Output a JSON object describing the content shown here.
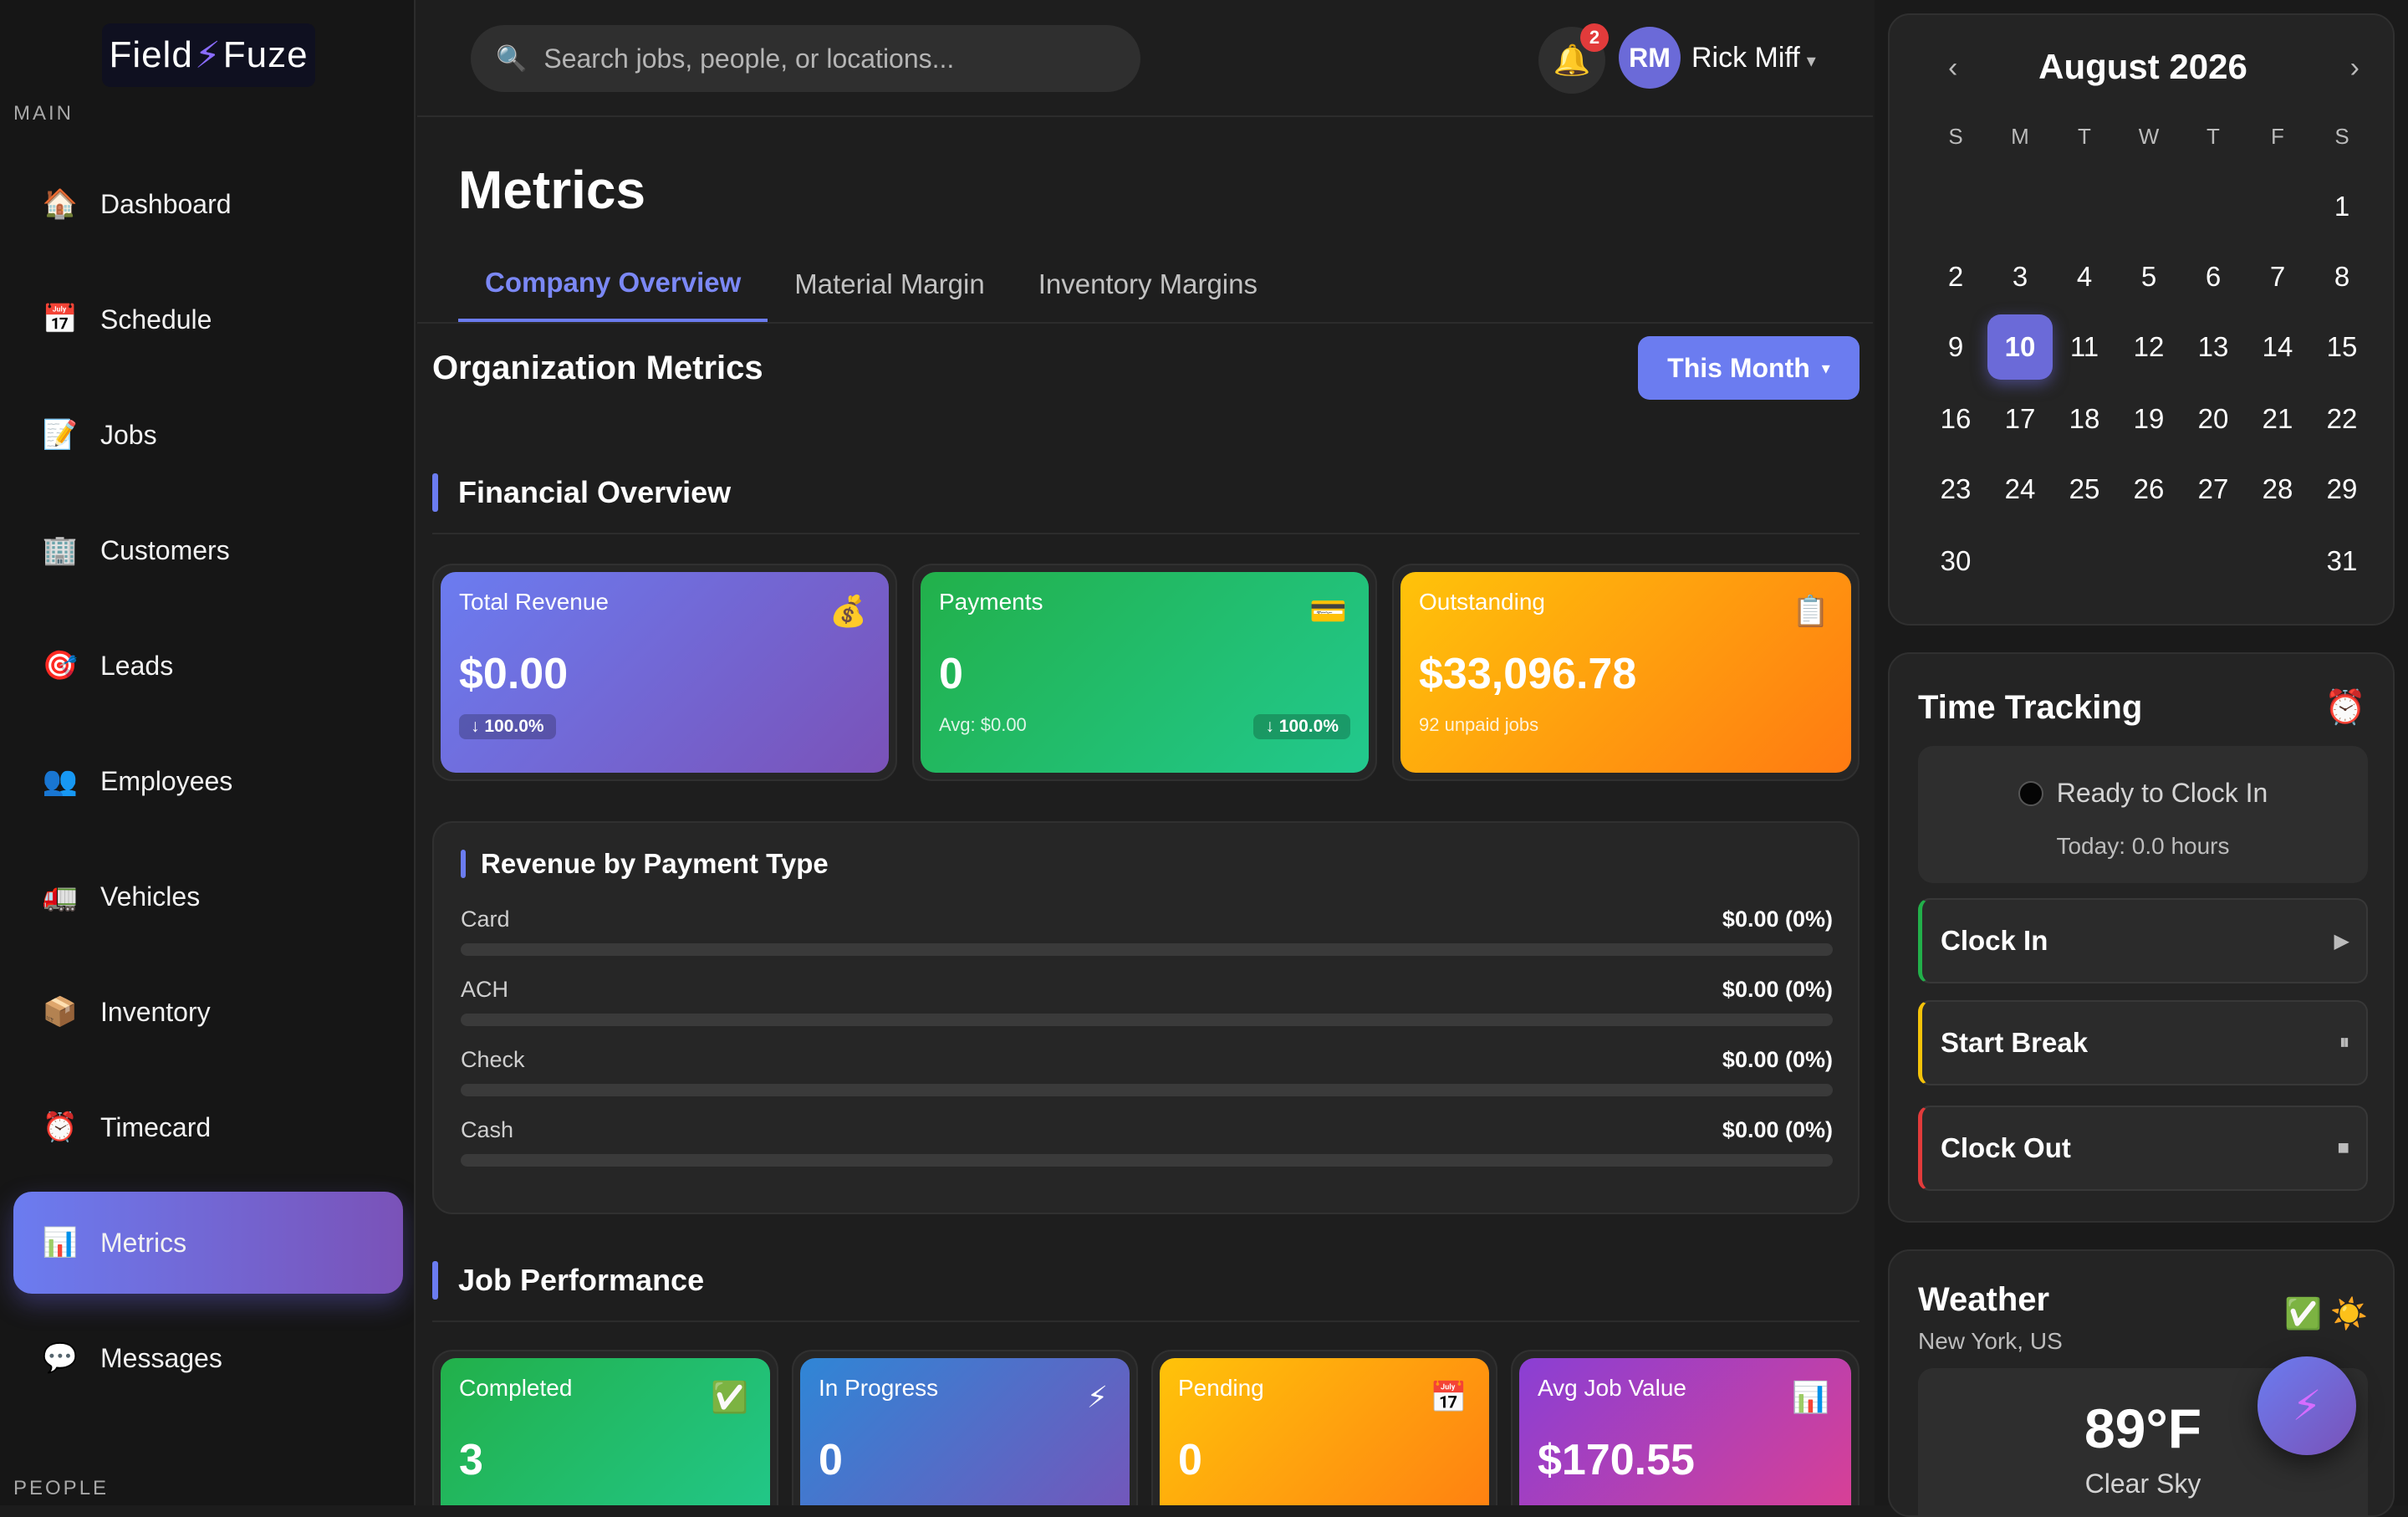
{
  "brand": {
    "logo_left": "Field",
    "logo_bolt": "⚡",
    "logo_right": "Fuze"
  },
  "sidebar": {
    "main_label": "MAIN",
    "people_label": "PEOPLE",
    "items": [
      {
        "label": "Dashboard",
        "icon": "🏠"
      },
      {
        "label": "Schedule",
        "icon": "📅"
      },
      {
        "label": "Jobs",
        "icon": "📝"
      },
      {
        "label": "Customers",
        "icon": "🏢"
      },
      {
        "label": "Leads",
        "icon": "🎯"
      },
      {
        "label": "Employees",
        "icon": "👥"
      },
      {
        "label": "Vehicles",
        "icon": "🚛"
      },
      {
        "label": "Inventory",
        "icon": "📦"
      },
      {
        "label": "Timecard",
        "icon": "⏰"
      },
      {
        "label": "Metrics",
        "icon": "📊",
        "active": true
      },
      {
        "label": "Messages",
        "icon": "💬"
      }
    ]
  },
  "header": {
    "search_placeholder": "Search jobs, people, or locations...",
    "search_icon": "🔍",
    "bell_icon": "🔔",
    "notification_count": "2",
    "avatar_initials": "RM",
    "user_name": "Rick Miff",
    "caret": "▾"
  },
  "main": {
    "title": "Metrics",
    "tabs": [
      {
        "label": "Company Overview",
        "active": true
      },
      {
        "label": "Material Margin"
      },
      {
        "label": "Inventory Margins"
      }
    ],
    "org_title": "Organization Metrics",
    "period_button": "This Month",
    "period_caret": "▾",
    "financial": {
      "title": "Financial Overview",
      "cards": [
        {
          "label": "Total Revenue",
          "icon": "💰",
          "value": "$0.00",
          "change": "↓ 100.0%",
          "gradient": [
            "#6b7cf0",
            "#7a52b8"
          ]
        },
        {
          "label": "Payments",
          "icon": "💳",
          "value": "0",
          "sub": "Avg: $0.00",
          "change": "↓ 100.0%",
          "gradient": [
            "#22b04a",
            "#22c98e"
          ]
        },
        {
          "label": "Outstanding",
          "icon": "📋",
          "value": "$33,096.78",
          "sub": "92 unpaid jobs",
          "gradient": [
            "#ffc30a",
            "#ff7a12"
          ]
        }
      ]
    },
    "payment_types": {
      "title": "Revenue by Payment Type",
      "rows": [
        {
          "label": "Card",
          "value": "$0.00 (0%)",
          "pct": 0
        },
        {
          "label": "ACH",
          "value": "$0.00 (0%)",
          "pct": 0
        },
        {
          "label": "Check",
          "value": "$0.00 (0%)",
          "pct": 0
        },
        {
          "label": "Cash",
          "value": "$0.00 (0%)",
          "pct": 0
        }
      ]
    },
    "jobs": {
      "title": "Job Performance",
      "cards": [
        {
          "label": "Completed",
          "icon": "✅",
          "value": "3",
          "gradient": [
            "#22b04a",
            "#22c98e"
          ]
        },
        {
          "label": "In Progress",
          "icon": "⚡",
          "value": "0",
          "gradient": [
            "#2f86d6",
            "#7a52b8"
          ]
        },
        {
          "label": "Pending",
          "icon": "📅",
          "value": "0",
          "gradient": [
            "#ffc30a",
            "#ff7a12"
          ]
        },
        {
          "label": "Avg Job Value",
          "icon": "📊",
          "value": "$170.55",
          "gradient": [
            "#8a3fd4",
            "#e0408f"
          ]
        }
      ]
    }
  },
  "calendar": {
    "month": "August 2026",
    "prev": "‹",
    "next": "›",
    "dow": [
      "S",
      "M",
      "T",
      "W",
      "T",
      "F",
      "S"
    ],
    "today": 10
  },
  "time_tracking": {
    "title": "Time Tracking",
    "icon": "⏰",
    "status": "Ready to Clock In",
    "today": "Today: 0.0 hours",
    "actions": [
      {
        "label": "Clock In",
        "icon": "▶",
        "color": "#22b04a"
      },
      {
        "label": "Start Break",
        "icon": "⏸",
        "color": "#f5c30a"
      },
      {
        "label": "Clock Out",
        "icon": "■",
        "color": "#e23b3b"
      }
    ]
  },
  "weather": {
    "title": "Weather",
    "location": "New York, US",
    "check_icon": "✅",
    "sun_icon": "☀️",
    "temp": "89°F",
    "condition": "Clear Sky"
  },
  "fab_icon": "⚡"
}
